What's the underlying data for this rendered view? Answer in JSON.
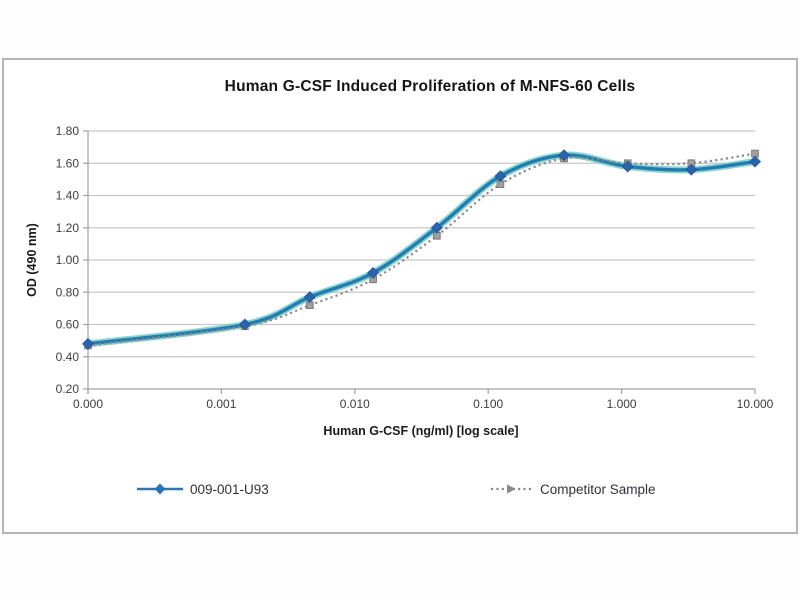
{
  "chart": {
    "frame_border_color": "#b5b5b5",
    "background_color": "#ffffff",
    "gridline_color": "#c8c8c8",
    "axis_line_color": "#a0a0a0",
    "tick_label_color": "#3d3d3d"
  },
  "chart_data": {
    "type": "line",
    "title": "Human G-CSF Induced Proliferation of M-NFS-60 Cells",
    "xlabel": "Human G-CSF (ng/ml) [log scale]",
    "ylabel": "OD (490 nm)",
    "x_scale": "log",
    "xlim": [
      0.0001,
      10
    ],
    "ylim": [
      0.2,
      1.8
    ],
    "grid": true,
    "legend_position": "bottom",
    "x_tick_values": [
      0.0001,
      0.001,
      0.01,
      0.1,
      1,
      10
    ],
    "x_tick_labels": [
      "0.000",
      "0.001",
      "0.010",
      "0.100",
      "1.000",
      "10.000"
    ],
    "y_tick_values": [
      0.2,
      0.4,
      0.6,
      0.8,
      1.0,
      1.2,
      1.4,
      1.6,
      1.8
    ],
    "y_tick_labels": [
      "0.20",
      "0.40",
      "0.60",
      "0.80",
      "1.00",
      "1.20",
      "1.40",
      "1.60",
      "1.80"
    ],
    "x": [
      0,
      0.0015,
      0.0046,
      0.0137,
      0.0412,
      0.1235,
      0.3704,
      1.111,
      3.333,
      10
    ],
    "series": [
      {
        "name": "009-001-U93",
        "values": [
          0.48,
          0.6,
          0.77,
          0.92,
          1.2,
          1.52,
          1.65,
          1.58,
          1.56,
          1.61
        ],
        "line_style": "solid",
        "color": "#1e7db5",
        "glow_color": "#7bcac1",
        "legend_color": "#2e74b5",
        "marker": "diamond",
        "marker_color": "#2a63ae"
      },
      {
        "name": "Competitor Sample",
        "values": [
          0.47,
          0.59,
          0.72,
          0.88,
          1.15,
          1.47,
          1.63,
          1.6,
          1.6,
          1.66
        ],
        "line_style": "dotted",
        "color": "#8a8a8a",
        "legend_color": "#8a8a8a",
        "marker": "square",
        "marker_color": "#9f9f9f"
      }
    ]
  }
}
